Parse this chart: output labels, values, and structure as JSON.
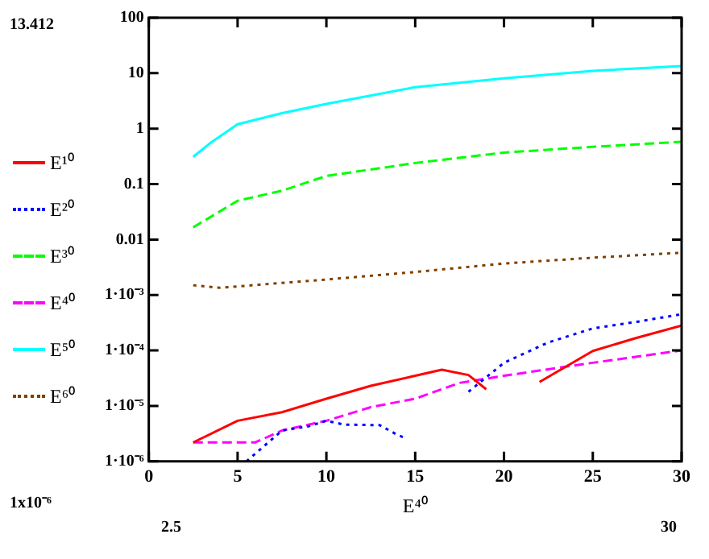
{
  "chart_data": {
    "type": "line",
    "xlabel": "E⁴⁰",
    "annotations": [
      "13.412",
      "1x10⁻⁶",
      "2.5",
      "30"
    ],
    "xlim": [
      0,
      30
    ],
    "xticks": [
      0,
      5,
      10,
      15,
      20,
      25,
      30
    ],
    "ylim": [
      1e-06,
      100
    ],
    "log": "y",
    "grid": false,
    "legend": "left",
    "marker": "none",
    "yticks": [
      {
        "value": 1e-06,
        "label": "1·10⁻⁶"
      },
      {
        "value": 1e-05,
        "label": "1·10⁻⁵"
      },
      {
        "value": 0.0001,
        "label": "1·10⁻⁴"
      },
      {
        "value": 0.001,
        "label": "1·10⁻³"
      },
      0.01,
      0.1,
      1,
      10,
      100
    ],
    "series": [
      {
        "name": "E¹⁰",
        "color": "#ff0000",
        "line_style": "solid",
        "x": [
          2.5,
          5,
          7.5,
          10,
          12.5,
          15,
          16.5,
          18,
          19,
          20.5,
          22,
          25,
          27.5,
          30
        ],
        "values": [
          2.2e-06,
          5.4e-06,
          7.7e-06,
          1.35e-05,
          2.3e-05,
          3.5e-05,
          4.5e-05,
          3.6e-05,
          2e-05,
          null,
          2.7e-05,
          9.8e-05,
          0.00017,
          0.00028
        ]
      },
      {
        "name": "E²⁰",
        "color": "#0000ff",
        "line_style": "dotted",
        "x": [
          5.5,
          7.5,
          9,
          10,
          11,
          13,
          14,
          14.5,
          16,
          18,
          20,
          22.5,
          25,
          27.5,
          30
        ],
        "values": [
          1e-06,
          3.6e-06,
          4.3e-06,
          5.4e-06,
          4.6e-06,
          4.5e-06,
          3e-06,
          2.6e-06,
          null,
          1.8e-05,
          6e-05,
          0.00014,
          0.00025,
          0.00033,
          0.00045
        ]
      },
      {
        "name": "E³⁰",
        "color": "#00ff00",
        "line_style": "dashed",
        "x": [
          2.5,
          5,
          7.5,
          10,
          15,
          20,
          25,
          30
        ],
        "values": [
          0.0166,
          0.05,
          0.076,
          0.14,
          0.24,
          0.37,
          0.47,
          0.58
        ]
      },
      {
        "name": "E⁴⁰",
        "color": "#ff00ff",
        "line_style": "dashed",
        "x": [
          2.5,
          5,
          6,
          7.5,
          10,
          12.5,
          15,
          17.5,
          20,
          25,
          30
        ],
        "values": [
          2.2e-06,
          2.2e-06,
          2.2e-06,
          3.6e-06,
          5.4e-06,
          9.5e-06,
          1.35e-05,
          2.6e-05,
          3.5e-05,
          6e-05,
          0.0001
        ]
      },
      {
        "name": "E⁵⁰",
        "color": "#00ffff",
        "line_style": "solid",
        "x": [
          2.5,
          3.5,
          5,
          7.5,
          10,
          15,
          20,
          25,
          30
        ],
        "values": [
          0.31,
          0.56,
          1.2,
          1.9,
          2.8,
          5.6,
          8.1,
          11,
          13.4
        ]
      },
      {
        "name": "E⁶⁰",
        "color": "#804000",
        "line_style": "dotted",
        "x": [
          2.5,
          4,
          7.5,
          10,
          15,
          20,
          25,
          30
        ],
        "values": [
          0.0015,
          0.00135,
          0.00165,
          0.0019,
          0.0026,
          0.0037,
          0.0047,
          0.0058
        ]
      }
    ]
  }
}
